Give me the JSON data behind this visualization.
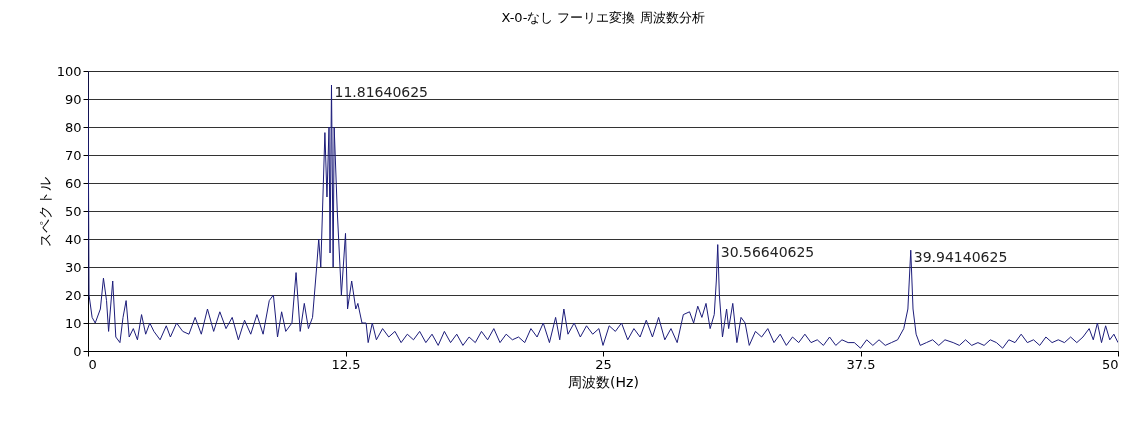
{
  "chart_data": {
    "type": "line",
    "title": "X-0-なし フーリエ変換 周波数分析",
    "xlabel": "周波数(Hz)",
    "ylabel": "スペクトル",
    "xlim": [
      0,
      50
    ],
    "xticks": [
      0,
      12.5,
      25,
      37.5,
      50
    ],
    "ylim": [
      0,
      100
    ],
    "yticks": [
      0,
      10,
      20,
      30,
      40,
      50,
      60,
      70,
      80,
      90,
      100
    ],
    "grid": "y",
    "marker": "none",
    "line_style": "solid",
    "series": [
      {
        "color": "#1c1c7a",
        "x": [
          0,
          0.05,
          0.2,
          0.35,
          0.6,
          0.75,
          0.9,
          1.0,
          1.2,
          1.35,
          1.55,
          1.7,
          1.85,
          2.0,
          2.2,
          2.4,
          2.6,
          2.8,
          3.0,
          3.2,
          3.5,
          3.8,
          4.0,
          4.3,
          4.6,
          4.9,
          5.2,
          5.5,
          5.8,
          6.1,
          6.4,
          6.7,
          7.0,
          7.3,
          7.6,
          7.9,
          8.2,
          8.5,
          8.8,
          9.0,
          9.2,
          9.4,
          9.6,
          9.9,
          10.1,
          10.3,
          10.5,
          10.7,
          10.9,
          11.1,
          11.2,
          11.3,
          11.5,
          11.6,
          11.7,
          11.75,
          11.82,
          11.9,
          11.95,
          12.1,
          12.3,
          12.5,
          12.6,
          12.8,
          13.0,
          13.1,
          13.3,
          13.5,
          13.6,
          13.8,
          14.0,
          14.3,
          14.6,
          14.9,
          15.2,
          15.5,
          15.8,
          16.1,
          16.4,
          16.7,
          17.0,
          17.3,
          17.6,
          17.9,
          18.2,
          18.5,
          18.8,
          19.1,
          19.4,
          19.7,
          20.0,
          20.3,
          20.6,
          20.9,
          21.2,
          21.5,
          21.8,
          22.1,
          22.4,
          22.7,
          22.9,
          23.1,
          23.3,
          23.6,
          23.9,
          24.2,
          24.5,
          24.8,
          25.0,
          25.3,
          25.6,
          25.9,
          26.2,
          26.5,
          26.8,
          27.1,
          27.4,
          27.7,
          28.0,
          28.3,
          28.6,
          28.9,
          29.2,
          29.4,
          29.6,
          29.8,
          30.0,
          30.2,
          30.4,
          30.5,
          30.57,
          30.65,
          30.8,
          31.0,
          31.1,
          31.3,
          31.5,
          31.7,
          31.9,
          32.1,
          32.4,
          32.7,
          33.0,
          33.3,
          33.6,
          33.9,
          34.2,
          34.5,
          34.8,
          35.1,
          35.4,
          35.7,
          36.0,
          36.3,
          36.6,
          36.9,
          37.2,
          37.5,
          37.8,
          38.1,
          38.4,
          38.7,
          39.0,
          39.3,
          39.6,
          39.8,
          39.94,
          40.05,
          40.2,
          40.4,
          40.7,
          41.0,
          41.3,
          41.6,
          42.0,
          42.3,
          42.6,
          42.9,
          43.2,
          43.5,
          43.8,
          44.1,
          44.4,
          44.7,
          45.0,
          45.3,
          45.6,
          45.9,
          46.2,
          46.5,
          46.8,
          47.1,
          47.4,
          47.7,
          48.0,
          48.3,
          48.6,
          48.8,
          49.0,
          49.2,
          49.4,
          49.6,
          49.8,
          50.0
        ],
        "values": [
          100,
          20,
          12,
          10,
          15,
          26,
          18,
          7,
          25,
          5,
          3,
          12,
          18,
          5,
          8,
          4,
          13,
          6,
          10,
          7,
          4,
          9,
          5,
          10,
          7,
          6,
          12,
          6,
          15,
          7,
          14,
          8,
          12,
          4,
          11,
          6,
          13,
          6,
          18,
          20,
          5,
          14,
          7,
          10,
          28,
          7,
          17,
          8,
          12,
          30,
          40,
          30,
          78,
          55,
          80,
          35,
          95,
          30,
          80,
          50,
          20,
          42,
          15,
          25,
          15,
          17,
          10,
          10,
          3,
          10,
          4,
          8,
          5,
          7,
          3,
          6,
          4,
          7,
          3,
          6,
          2,
          7,
          3,
          6,
          2,
          5,
          3,
          7,
          4,
          8,
          3,
          6,
          4,
          5,
          3,
          8,
          5,
          10,
          3,
          12,
          4,
          15,
          6,
          10,
          5,
          9,
          6,
          8,
          2,
          9,
          7,
          10,
          4,
          8,
          5,
          11,
          5,
          12,
          4,
          8,
          3,
          13,
          14,
          10,
          16,
          12,
          17,
          8,
          13,
          25,
          38,
          20,
          5,
          15,
          8,
          17,
          3,
          12,
          10,
          2,
          7,
          5,
          8,
          3,
          6,
          2,
          5,
          3,
          6,
          3,
          4,
          2,
          5,
          2,
          4,
          3,
          3,
          1,
          4,
          2,
          4,
          2,
          3,
          4,
          8,
          15,
          36,
          15,
          6,
          2,
          3,
          4,
          2,
          4,
          3,
          2,
          4,
          2,
          3,
          2,
          4,
          3,
          1,
          4,
          3,
          6,
          3,
          4,
          2,
          5,
          3,
          4,
          3,
          5,
          3,
          5,
          8,
          4,
          10,
          3,
          9,
          4,
          6,
          3
        ]
      }
    ],
    "annotations": [
      {
        "text": "11.81640625",
        "x": 11.82,
        "y": 95
      },
      {
        "text": "30.56640625",
        "x": 30.57,
        "y": 38
      },
      {
        "text": "39.94140625",
        "x": 39.94,
        "y": 36
      }
    ]
  }
}
